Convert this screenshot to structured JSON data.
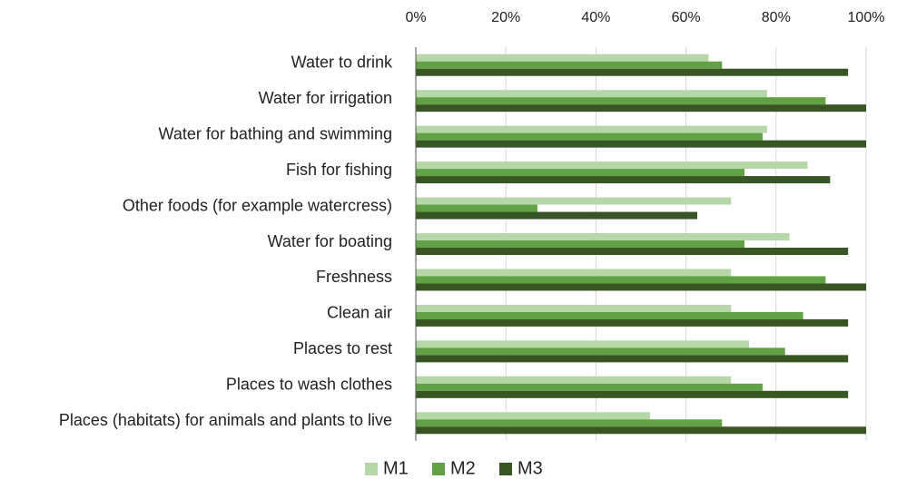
{
  "chart_data": {
    "type": "barh",
    "categories": [
      "Water to drink",
      "Water for irrigation",
      "Water for bathing and swimming",
      "Fish for fishing",
      "Other foods (for example watercress)",
      "Water for boating",
      "Freshness",
      "Clean air",
      "Places to rest",
      "Places to wash clothes",
      "Places (habitats) for animals and plants to live"
    ],
    "series": [
      {
        "name": "M1",
        "color": "#b6d7a8",
        "values": [
          65,
          78,
          78,
          87,
          70,
          83,
          70,
          70,
          74,
          70,
          52
        ]
      },
      {
        "name": "M2",
        "color": "#63a146",
        "values": [
          68,
          91,
          77,
          73,
          27,
          73,
          91,
          86,
          82,
          77,
          68
        ]
      },
      {
        "name": "M3",
        "color": "#375623",
        "values": [
          96,
          100,
          100,
          92,
          62.5,
          96,
          100,
          96,
          96,
          96,
          100
        ]
      }
    ],
    "xlim": [
      0,
      100
    ],
    "xticks": [
      {
        "value": 0,
        "label": "0%"
      },
      {
        "value": 20,
        "label": "20%"
      },
      {
        "value": 40,
        "label": "40%"
      },
      {
        "value": 60,
        "label": "60%"
      },
      {
        "value": 80,
        "label": "80%"
      },
      {
        "value": 100,
        "label": "100%"
      }
    ],
    "grid": true,
    "legend": "bottom"
  }
}
